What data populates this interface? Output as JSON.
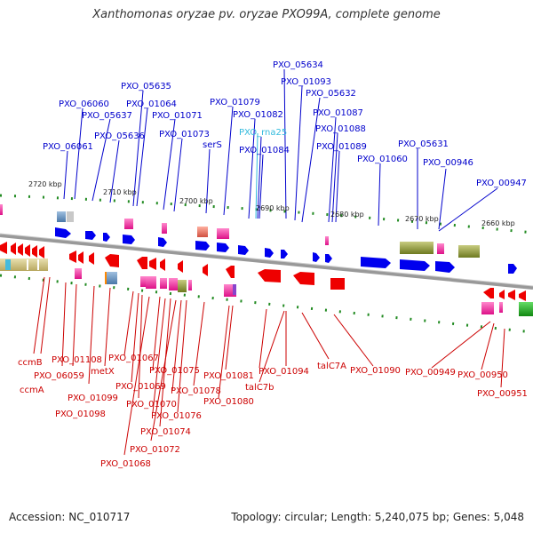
{
  "title": "Xanthomonas oryzae pv. oryzae PXO99A, complete genome",
  "footer": {
    "accession": "Accession: NC_010717",
    "topology": "Topology: circular; Length: 5,240,075 bp; Genes: 5,048"
  },
  "colors": {
    "forward_label": "#0000cc",
    "reverse_label": "#cc0000",
    "rna_label": "#33bbdd",
    "forward_gene": "#0000ee",
    "reverse_gene": "#ee0000",
    "backbone": "#888888",
    "tick": "#228b22"
  },
  "ticks": [
    "2720 kbp",
    "2710 kbp",
    "2700 kbp",
    "2690 kbp",
    "2680 kbp",
    "2670 kbp",
    "2660 kbp"
  ],
  "forward_labels": [
    "PXO_05634",
    "PXO_01093",
    "PXO_05635",
    "PXO_05632",
    "PXO_06060",
    "PXO_01064",
    "PXO_01079",
    "PXO_05637",
    "PXO_01071",
    "PXO_01082",
    "PXO_01087",
    "PXO_01088",
    "PXO_05636",
    "PXO_01073",
    "PXO_rna25",
    "PXO_06061",
    "serS",
    "PXO_05631",
    "PXO_01089",
    "PXO_01084",
    "PXO_01060",
    "PXO_00946",
    "PXO_00947"
  ],
  "reverse_labels": [
    "PXO_01067",
    "PXO_01108",
    "ccmB",
    "PXO_06059",
    "metX",
    "PXO_01075",
    "PXO_01081",
    "PXO_01094",
    "talC7A",
    "PXO_01090",
    "PXO_00949",
    "PXO_00950",
    "PXO_01069",
    "PXO_01078",
    "talC7b",
    "ccmA",
    "PXO_01099",
    "PXO_01070",
    "PXO_01080",
    "PXO_00951",
    "PXO_01098",
    "PXO_01076",
    "PXO_01074",
    "PXO_01072",
    "PXO_01068"
  ]
}
